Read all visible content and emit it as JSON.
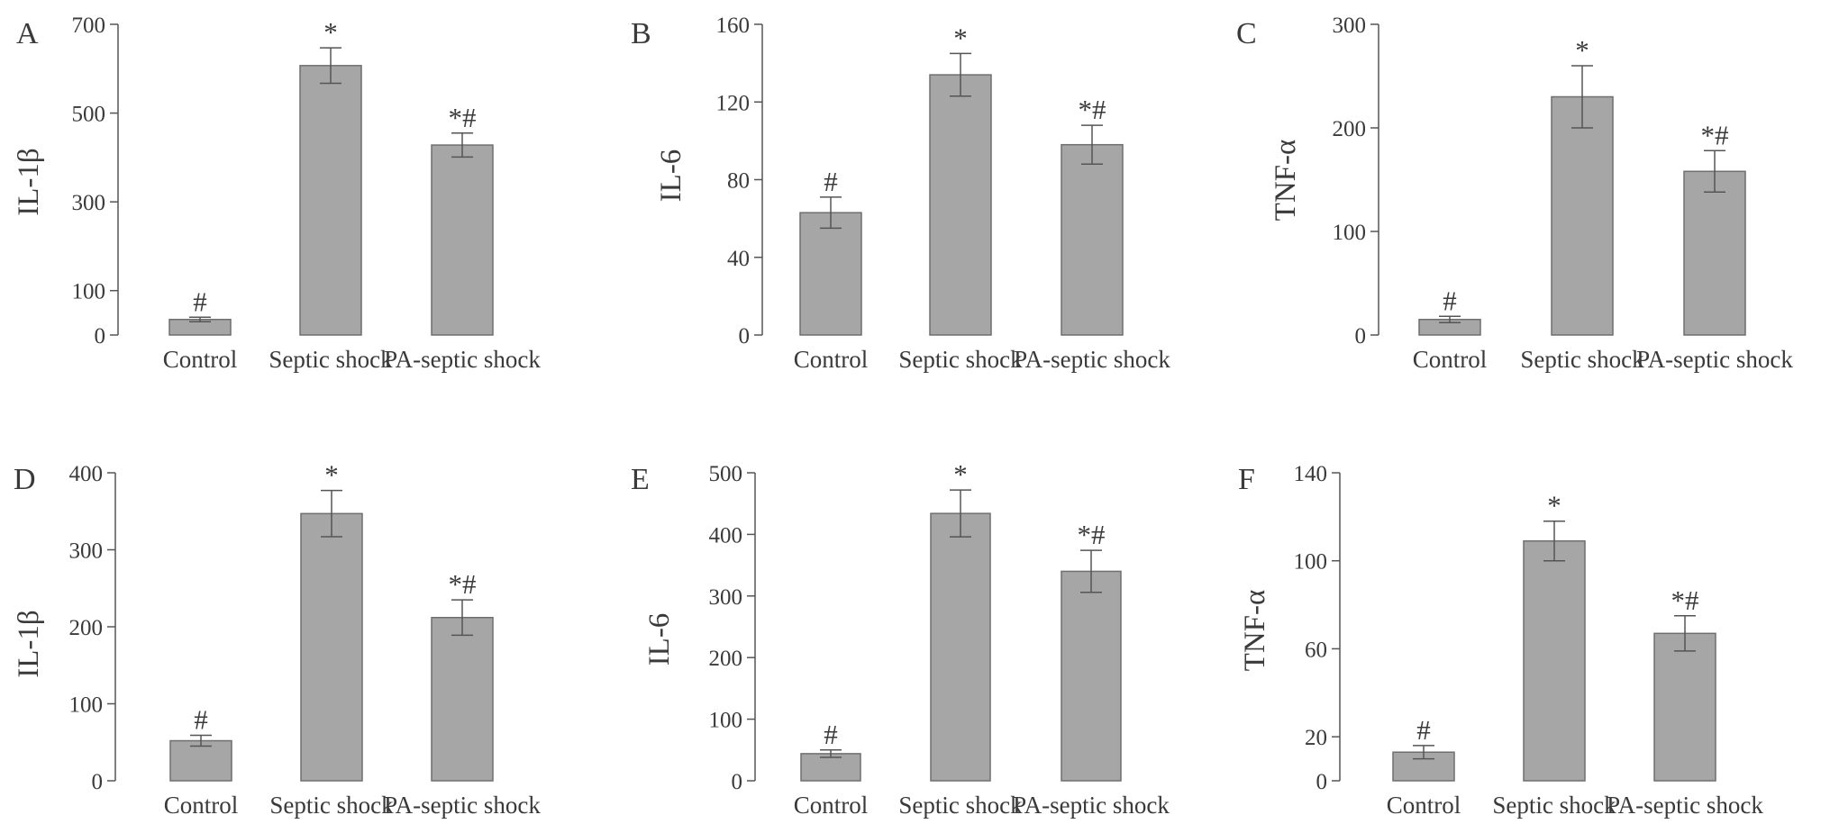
{
  "chart_data": [
    {
      "panel_label": "A",
      "type": "bar",
      "ylabel": "IL-1β",
      "categories": [
        "Control",
        "Septic shock",
        "PA-septic shock"
      ],
      "values": [
        35,
        607,
        428
      ],
      "errors": [
        5,
        40,
        27
      ],
      "annotations": [
        "#",
        "*",
        "*#"
      ],
      "yticks": [
        0,
        100,
        300,
        500,
        700
      ],
      "ylim": [
        0,
        700
      ],
      "bar_color": "#a6a6a6"
    },
    {
      "panel_label": "B",
      "type": "bar",
      "ylabel": "IL-6",
      "categories": [
        "Control",
        "Septic shock",
        "PA-septic shock"
      ],
      "values": [
        63,
        134,
        98
      ],
      "errors": [
        8,
        11,
        10
      ],
      "annotations": [
        "#",
        "*",
        "*#"
      ],
      "yticks": [
        0,
        40,
        80,
        120,
        160
      ],
      "ylim": [
        0,
        160
      ],
      "bar_color": "#a6a6a6"
    },
    {
      "panel_label": "C",
      "type": "bar",
      "ylabel": "TNF-α",
      "categories": [
        "Control",
        "Septic shock",
        "PA-septic shock"
      ],
      "values": [
        15,
        230,
        158
      ],
      "errors": [
        3,
        30,
        20
      ],
      "annotations": [
        "#",
        "*",
        "*#"
      ],
      "yticks": [
        0,
        100,
        200,
        300
      ],
      "ylim": [
        0,
        300
      ],
      "bar_color": "#a6a6a6"
    },
    {
      "panel_label": "D",
      "type": "bar",
      "ylabel": "IL-1β",
      "categories": [
        "Control",
        "Septic shock",
        "PA-septic shock"
      ],
      "values": [
        52,
        347,
        212
      ],
      "errors": [
        7,
        30,
        23
      ],
      "annotations": [
        "#",
        "*",
        "*#"
      ],
      "yticks": [
        0,
        100,
        200,
        300,
        400
      ],
      "ylim": [
        0,
        400
      ],
      "bar_color": "#a6a6a6"
    },
    {
      "panel_label": "E",
      "type": "bar",
      "ylabel": "IL-6",
      "categories": [
        "Control",
        "Septic shock",
        "PA-septic shock"
      ],
      "values": [
        44,
        434,
        340
      ],
      "errors": [
        6,
        38,
        34
      ],
      "annotations": [
        "#",
        "*",
        "*#"
      ],
      "yticks": [
        0,
        100,
        200,
        300,
        400,
        500
      ],
      "ylim": [
        0,
        500
      ],
      "bar_color": "#a6a6a6"
    },
    {
      "panel_label": "F",
      "type": "bar",
      "ylabel": "TNF-α",
      "categories": [
        "Control",
        "Septic shock",
        "PA-septic shock"
      ],
      "values": [
        13,
        109,
        67
      ],
      "errors": [
        3,
        9,
        8
      ],
      "annotations": [
        "#",
        "*",
        "*#"
      ],
      "yticks": [
        0,
        20,
        60,
        100,
        140
      ],
      "ylim": [
        0,
        140
      ],
      "bar_color": "#a6a6a6"
    }
  ]
}
